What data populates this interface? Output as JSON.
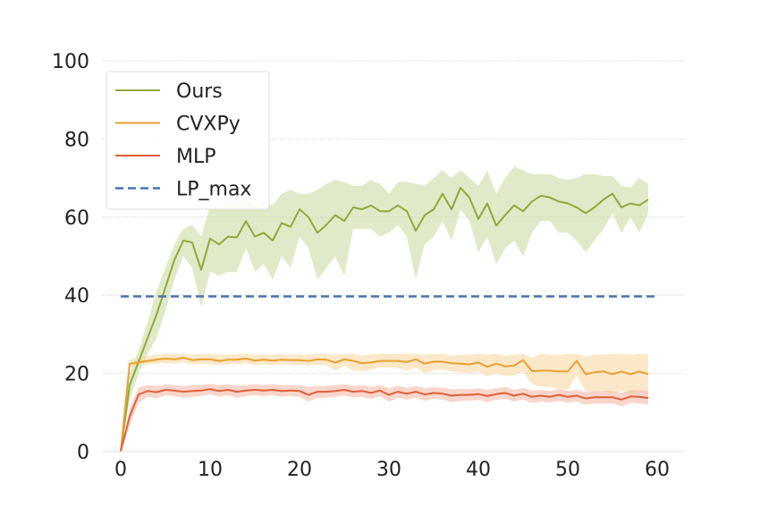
{
  "chart_data": {
    "type": "line",
    "title": "",
    "xlabel": "",
    "ylabel": "",
    "xlim": [
      -2,
      63
    ],
    "ylim": [
      0,
      100
    ],
    "x_ticks": [
      "0",
      "10",
      "20",
      "30",
      "40",
      "50",
      "60"
    ],
    "y_ticks": [
      "0",
      "20",
      "40",
      "60",
      "80",
      "100"
    ],
    "grid": "horizontal",
    "legend_position": "top-left",
    "series": [
      {
        "name": "Ours",
        "color": "#8faa3a",
        "band_color": "#c6d89a",
        "x": [
          0,
          1,
          2,
          3,
          4,
          5,
          6,
          7,
          8,
          9,
          10,
          11,
          12,
          13,
          14,
          15,
          16,
          17,
          18,
          19,
          20,
          21,
          22,
          23,
          24,
          25,
          26,
          27,
          28,
          29,
          30,
          31,
          32,
          33,
          34,
          35,
          36,
          37,
          38,
          39,
          40,
          41,
          42,
          43,
          44,
          45,
          46,
          47,
          48,
          49,
          50,
          51,
          52,
          53,
          54,
          55,
          56,
          57,
          58,
          59
        ],
        "y": [
          0,
          17,
          23,
          29,
          35,
          42,
          49,
          54,
          53.5,
          46.5,
          54.5,
          53,
          55,
          54.8,
          59,
          55,
          56,
          54,
          58.5,
          57.5,
          62,
          60,
          56,
          58,
          60.5,
          59,
          62.5,
          62,
          63,
          61.5,
          61.5,
          63,
          61.5,
          56.5,
          60.5,
          62,
          66,
          62,
          67.5,
          65,
          59.5,
          63.5,
          57.8,
          60.5,
          63,
          61.5,
          64,
          65.5,
          65,
          64,
          63.5,
          62.5,
          61,
          62.5,
          64.5,
          66,
          62.5,
          63.5,
          63,
          64.5
        ],
        "upper": [
          0,
          20,
          26,
          33,
          41,
          47,
          53,
          57,
          58,
          55,
          63,
          62,
          64,
          64,
          65,
          63,
          64,
          63,
          66,
          67,
          66,
          66,
          67,
          68.5,
          69.5,
          69,
          68,
          68,
          69.5,
          68.5,
          66,
          69,
          69,
          68.5,
          68,
          70,
          72,
          70,
          72,
          70,
          68,
          72,
          66,
          70,
          73,
          72,
          71,
          71,
          71,
          70,
          69.5,
          70,
          71,
          71,
          70.5,
          70.5,
          68,
          67.5,
          70,
          68.5
        ],
        "lower": [
          0,
          13,
          20,
          25,
          29,
          36,
          44,
          50,
          47,
          37,
          46,
          45,
          46,
          46,
          52,
          46,
          48,
          44,
          50,
          47,
          55,
          52,
          44,
          47,
          50,
          45,
          57,
          57,
          57,
          55,
          56,
          58,
          55,
          44,
          53,
          55,
          59,
          54,
          62,
          59,
          51,
          55,
          48,
          52,
          54,
          50,
          56,
          59,
          59,
          56,
          56,
          54,
          51,
          54,
          57,
          61,
          56,
          60,
          56,
          61
        ]
      },
      {
        "name": "CVXPy",
        "color": "#e8a030",
        "band_color": "#f5d59a",
        "x": [
          0,
          1,
          2,
          3,
          4,
          5,
          6,
          7,
          8,
          9,
          10,
          11,
          12,
          13,
          14,
          15,
          16,
          17,
          18,
          19,
          20,
          21,
          22,
          23,
          24,
          25,
          26,
          27,
          28,
          29,
          30,
          31,
          32,
          33,
          34,
          35,
          36,
          37,
          38,
          39,
          40,
          41,
          42,
          43,
          44,
          45,
          46,
          47,
          48,
          49,
          50,
          51,
          52,
          53,
          54,
          55,
          56,
          57,
          58,
          59
        ],
        "y": [
          0,
          22.5,
          22.8,
          23.2,
          23.5,
          23.8,
          23.6,
          24,
          23.4,
          23.6,
          23.6,
          23.2,
          23.5,
          23.5,
          23.8,
          23.3,
          23.5,
          23.3,
          23.5,
          23.4,
          23.4,
          23.2,
          23.6,
          23.5,
          22.8,
          23.6,
          23.2,
          22.6,
          22.8,
          23.2,
          23.2,
          23.2,
          22.9,
          23.6,
          22.5,
          23.0,
          23.0,
          22.6,
          22.5,
          22.3,
          22.8,
          21.7,
          22.5,
          21.8,
          22.0,
          23.4,
          20.6,
          20.7,
          20.7,
          20.5,
          20.5,
          23.2,
          19.8,
          20.3,
          20.5,
          19.8,
          20.5,
          19.8,
          20.5,
          19.8
        ],
        "upper": [
          0,
          23.5,
          24,
          24.5,
          24.8,
          25,
          25,
          25,
          24.8,
          25,
          25,
          24.8,
          24.8,
          24.9,
          25,
          24.8,
          24.8,
          24.8,
          24.9,
          24.8,
          24.9,
          24.8,
          25,
          25,
          24.8,
          25,
          25,
          24.5,
          24.9,
          25,
          25,
          25,
          25,
          25,
          24.8,
          25,
          25,
          24.5,
          24.8,
          24.8,
          25,
          24.8,
          25,
          24.5,
          24.8,
          25,
          24,
          25,
          24.8,
          24.8,
          25,
          25,
          24.3,
          24.8,
          24.8,
          25,
          25,
          24.8,
          25,
          25
        ],
        "lower": [
          0,
          21.5,
          22,
          22.2,
          22.5,
          22.7,
          22.5,
          22.8,
          22.3,
          22.4,
          22.4,
          22.1,
          22.3,
          22.4,
          22.6,
          22.1,
          22.3,
          22.1,
          22.3,
          22.2,
          22.2,
          22,
          22.3,
          22,
          20.8,
          22,
          20.8,
          20.5,
          21,
          21.5,
          21.5,
          21.3,
          20.8,
          21.5,
          20,
          20.8,
          21,
          20.5,
          20.3,
          20,
          20.5,
          19.3,
          20.0,
          19.3,
          19.5,
          20.5,
          17.2,
          16.5,
          16.5,
          16,
          15.8,
          19.5,
          15.3,
          15.5,
          15.5,
          15,
          15.5,
          14.5,
          15.5,
          14.5
        ]
      },
      {
        "name": "MLP",
        "color": "#e0603a",
        "band_color": "#f3b5a3",
        "x": [
          0,
          1,
          2,
          3,
          4,
          5,
          6,
          7,
          8,
          9,
          10,
          11,
          12,
          13,
          14,
          15,
          16,
          17,
          18,
          19,
          20,
          21,
          22,
          23,
          24,
          25,
          26,
          27,
          28,
          29,
          30,
          31,
          32,
          33,
          34,
          35,
          36,
          37,
          38,
          39,
          40,
          41,
          42,
          43,
          44,
          45,
          46,
          47,
          48,
          49,
          50,
          51,
          52,
          53,
          54,
          55,
          56,
          57,
          58,
          59
        ],
        "y": [
          0,
          9,
          14.6,
          15.5,
          15.2,
          15.8,
          15.6,
          15.3,
          15.5,
          15.6,
          16,
          15.5,
          15.8,
          15.3,
          15.6,
          15.8,
          15.6,
          15.8,
          15.5,
          15.6,
          15.5,
          14.5,
          15.3,
          15.3,
          15.5,
          15.8,
          15.3,
          15.5,
          15.0,
          15.6,
          14.5,
          15.3,
          14.8,
          15.3,
          14.6,
          15.0,
          14.8,
          14.3,
          14.5,
          14.5,
          14.7,
          14.2,
          14.7,
          15.0,
          14.3,
          14.8,
          14.0,
          14.3,
          14.0,
          14.5,
          14.0,
          14.3,
          13.6,
          13.9,
          13.9,
          13.9,
          13.3,
          14.1,
          14.0,
          13.7
        ],
        "upper": [
          0,
          11,
          16.5,
          17,
          16.8,
          17.2,
          17,
          16.8,
          17,
          17,
          17.3,
          17,
          17.2,
          16.8,
          17,
          17.2,
          17,
          17.2,
          17,
          17,
          17,
          16.5,
          16.8,
          16.8,
          17,
          17.2,
          16.8,
          17,
          16.5,
          17,
          16.2,
          16.8,
          16.3,
          16.8,
          16.2,
          16.5,
          16.3,
          16,
          16,
          16,
          16.2,
          15.8,
          16.2,
          16.5,
          15.8,
          16.3,
          15.6,
          15.8,
          15.5,
          16,
          15.5,
          15.8,
          15.2,
          15.5,
          15.5,
          15.5,
          15,
          15.7,
          15.7,
          15.4
        ],
        "lower": [
          0,
          6.5,
          12.5,
          14,
          13.6,
          14.4,
          14.2,
          13.8,
          14,
          14.2,
          14.7,
          14,
          14.4,
          13.8,
          14.2,
          14.4,
          14.2,
          14.4,
          14,
          14.2,
          14,
          12.8,
          13.8,
          13.8,
          14,
          14.4,
          13.8,
          14,
          13.5,
          14.2,
          12.8,
          13.8,
          13.3,
          13.8,
          13,
          13.5,
          13.3,
          12.6,
          13,
          13,
          13.2,
          12.6,
          13.2,
          13.5,
          12.8,
          13.3,
          12.4,
          12.8,
          12.5,
          13,
          12.5,
          12.8,
          12,
          12.3,
          12.3,
          12.3,
          11.6,
          12.5,
          12.3,
          12
        ]
      },
      {
        "name": "LP_max",
        "color": "#4c72b0",
        "dashed": true,
        "x": [
          0,
          60
        ],
        "y": [
          39.7,
          39.7
        ]
      }
    ]
  }
}
